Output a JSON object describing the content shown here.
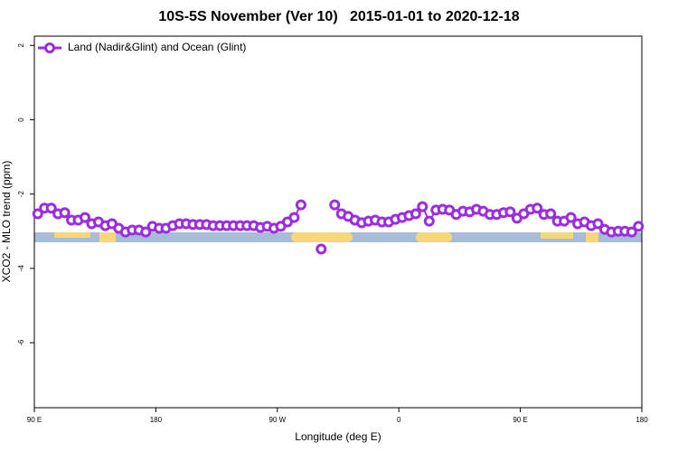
{
  "chart_data": {
    "type": "line",
    "title": "10S-5S November (Ver 10)   2015-01-01 to 2020-12-18",
    "xlabel": "Longitude (deg E)",
    "ylabel": "XCO2 - MLO trend (ppm)",
    "xlim": [
      90,
      540
    ],
    "xticks": [
      {
        "value": 90,
        "label": "90 E"
      },
      {
        "value": 180,
        "label": "180"
      },
      {
        "value": 270,
        "label": "90 W"
      },
      {
        "value": 360,
        "label": "0"
      },
      {
        "value": 450,
        "label": "90 E"
      },
      {
        "value": 540,
        "label": "180"
      }
    ],
    "ylim": [
      -7.75,
      2.25
    ],
    "yticks": [
      2,
      0,
      -2,
      -4,
      -6
    ],
    "legend": "top-left",
    "x": [
      92.5,
      97.5,
      102.5,
      107.5,
      112.5,
      117.5,
      122.5,
      127.5,
      132.5,
      137.5,
      142.5,
      147.5,
      152.5,
      157.5,
      162.5,
      167.5,
      172.5,
      177.5,
      182.5,
      187.5,
      192.5,
      197.5,
      202.5,
      207.5,
      212.5,
      217.5,
      222.5,
      227.5,
      232.5,
      237.5,
      242.5,
      247.5,
      252.5,
      257.5,
      262.5,
      267.5,
      272.5,
      277.5,
      282.5,
      287.5,
      292.5,
      297.5,
      302.5,
      307.5,
      312.5,
      317.5,
      322.5,
      327.5,
      332.5,
      337.5,
      342.5,
      347.5,
      352.5,
      357.5,
      362.5,
      367.5,
      372.5,
      377.5,
      382.5,
      387.5,
      392.5,
      397.5,
      402.5,
      407.5,
      412.5,
      417.5,
      422.5,
      427.5,
      432.5,
      437.5,
      442.5,
      447.5,
      452.5,
      457.5,
      462.5,
      467.5,
      472.5,
      477.5,
      482.5,
      487.5,
      492.5,
      497.5,
      502.5,
      507.5,
      512.5,
      517.5,
      522.5,
      527.5,
      532.5,
      537.5
    ],
    "series": [
      {
        "name": "Land (Nadir&Glint) and Ocean (Glint)",
        "color": "#9b2de0",
        "values": [
          -2.53,
          -2.38,
          -2.38,
          -2.53,
          -2.5,
          -2.7,
          -2.7,
          -2.63,
          -2.8,
          -2.75,
          -2.85,
          -2.8,
          -2.92,
          -3.02,
          -2.97,
          -2.97,
          -3.02,
          -2.87,
          -2.92,
          -2.92,
          -2.85,
          -2.8,
          -2.8,
          -2.82,
          -2.82,
          -2.82,
          -2.85,
          -2.85,
          -2.85,
          -2.85,
          -2.85,
          -2.85,
          -2.85,
          -2.9,
          -2.87,
          -2.92,
          -2.87,
          -2.75,
          -2.63,
          -2.29,
          null,
          null,
          -3.48,
          null,
          -2.29,
          -2.53,
          -2.6,
          -2.7,
          -2.77,
          -2.73,
          -2.7,
          -2.75,
          -2.75,
          -2.68,
          -2.63,
          -2.58,
          -2.53,
          -2.34,
          -2.73,
          -2.43,
          -2.41,
          -2.43,
          -2.55,
          -2.46,
          -2.48,
          -2.41,
          -2.46,
          -2.55,
          -2.55,
          -2.5,
          -2.48,
          -2.65,
          -2.53,
          -2.41,
          -2.38,
          -2.55,
          -2.53,
          -2.73,
          -2.73,
          -2.63,
          -2.8,
          -2.75,
          -2.85,
          -2.8,
          -2.95,
          -3.02,
          -3.0,
          -3.0,
          -3.02,
          -2.87
        ]
      }
    ]
  }
}
